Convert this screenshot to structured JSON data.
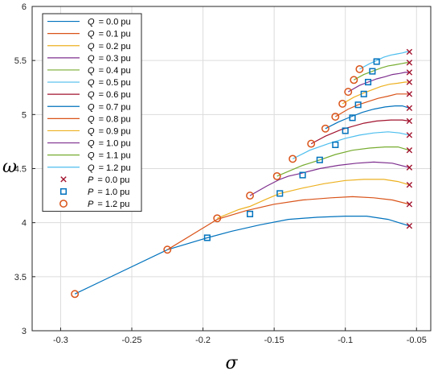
{
  "chart_data": {
    "type": "line",
    "xlabel": "σ",
    "ylabel": "ω",
    "xlim": [
      -0.32,
      -0.04
    ],
    "ylim": [
      3,
      6
    ],
    "xticks": [
      -0.3,
      -0.25,
      -0.2,
      -0.15,
      -0.1,
      -0.05
    ],
    "xtick_labels": [
      "-0.3",
      "-0.25",
      "-0.2",
      "-0.15",
      "-0.1",
      "-0.05"
    ],
    "yticks": [
      3,
      3.5,
      4,
      4.5,
      5,
      5.5,
      6
    ],
    "ytick_labels": [
      "3",
      "3.5",
      "4",
      "4.5",
      "5",
      "5.5",
      "6"
    ],
    "grid": true,
    "legend_position": "top-left",
    "series": [
      {
        "name": "Q = 0.0 pu",
        "symbol": "Q",
        "value_text": "= 0.0 pu",
        "color": "#0072BD",
        "x": [
          -0.29,
          -0.225,
          -0.197,
          -0.18,
          -0.16,
          -0.14,
          -0.12,
          -0.1,
          -0.085,
          -0.07,
          -0.055
        ],
        "y": [
          3.34,
          3.75,
          3.86,
          3.92,
          3.98,
          4.03,
          4.05,
          4.06,
          4.06,
          4.03,
          3.97
        ]
      },
      {
        "name": "Q = 0.1 pu",
        "symbol": "Q",
        "value_text": "= 0.1 pu",
        "color": "#D95319",
        "x": [
          -0.225,
          -0.2,
          -0.19,
          -0.17,
          -0.15,
          -0.13,
          -0.11,
          -0.095,
          -0.08,
          -0.067,
          -0.055
        ],
        "y": [
          3.75,
          3.95,
          4.03,
          4.11,
          4.17,
          4.21,
          4.23,
          4.24,
          4.23,
          4.21,
          4.17
        ]
      },
      {
        "name": "Q = 0.2 pu",
        "symbol": "Q",
        "value_text": "= 0.2 pu",
        "color": "#EDB120",
        "x": [
          -0.19,
          -0.175,
          -0.167,
          -0.155,
          -0.146,
          -0.13,
          -0.115,
          -0.1,
          -0.087,
          -0.073,
          -0.063,
          -0.055
        ],
        "y": [
          4.04,
          4.12,
          4.15,
          4.22,
          4.27,
          4.32,
          4.36,
          4.39,
          4.4,
          4.4,
          4.38,
          4.35
        ]
      },
      {
        "name": "Q = 0.3 pu",
        "symbol": "Q",
        "value_text": "= 0.3 pu",
        "color": "#7E2F8E",
        "x": [
          -0.167,
          -0.155,
          -0.146,
          -0.14,
          -0.13,
          -0.118,
          -0.105,
          -0.092,
          -0.08,
          -0.067,
          -0.055
        ],
        "y": [
          4.25,
          4.34,
          4.4,
          4.43,
          4.46,
          4.5,
          4.53,
          4.55,
          4.56,
          4.55,
          4.51
        ]
      },
      {
        "name": "Q = 0.4 pu",
        "symbol": "Q",
        "value_text": "= 0.4 pu",
        "color": "#77AC30",
        "x": [
          -0.148,
          -0.13,
          -0.118,
          -0.107,
          -0.095,
          -0.083,
          -0.072,
          -0.063,
          -0.055
        ],
        "y": [
          4.43,
          4.53,
          4.58,
          4.63,
          4.67,
          4.69,
          4.7,
          4.7,
          4.67
        ]
      },
      {
        "name": "Q = 0.5 pu",
        "symbol": "Q",
        "value_text": "= 0.5 pu",
        "color": "#4DBEEE",
        "x": [
          -0.137,
          -0.125,
          -0.112,
          -0.1,
          -0.09,
          -0.08,
          -0.07,
          -0.062,
          -0.055
        ],
        "y": [
          4.59,
          4.67,
          4.73,
          4.78,
          4.81,
          4.83,
          4.84,
          4.83,
          4.81
        ]
      },
      {
        "name": "Q = 0.6 pu",
        "symbol": "Q",
        "value_text": "= 0.6 pu",
        "color": "#A2142F",
        "x": [
          -0.124,
          -0.114,
          -0.103,
          -0.095,
          -0.087,
          -0.078,
          -0.068,
          -0.06,
          -0.055
        ],
        "y": [
          4.73,
          4.8,
          4.86,
          4.89,
          4.92,
          4.94,
          4.95,
          4.95,
          4.94
        ]
      },
      {
        "name": "Q = 0.7 pu",
        "symbol": "Q",
        "value_text": "= 0.7 pu",
        "color": "#0072BD",
        "x": [
          -0.114,
          -0.105,
          -0.096,
          -0.088,
          -0.08,
          -0.072,
          -0.065,
          -0.06,
          -0.055
        ],
        "y": [
          4.87,
          4.93,
          4.98,
          5.02,
          5.05,
          5.07,
          5.08,
          5.08,
          5.06
        ]
      },
      {
        "name": "Q = 0.8 pu",
        "symbol": "Q",
        "value_text": "= 0.8 pu",
        "color": "#D95319",
        "x": [
          -0.107,
          -0.098,
          -0.091,
          -0.084,
          -0.077,
          -0.07,
          -0.064,
          -0.059,
          -0.055
        ],
        "y": [
          4.98,
          5.05,
          5.09,
          5.12,
          5.15,
          5.17,
          5.19,
          5.19,
          5.19
        ]
      },
      {
        "name": "Q = 0.9 pu",
        "symbol": "Q",
        "value_text": "= 0.9 pu",
        "color": "#EDB120",
        "x": [
          -0.102,
          -0.094,
          -0.087,
          -0.081,
          -0.075,
          -0.069,
          -0.063,
          -0.058,
          -0.055
        ],
        "y": [
          5.1,
          5.16,
          5.2,
          5.23,
          5.26,
          5.28,
          5.29,
          5.3,
          5.3
        ]
      },
      {
        "name": "Q = 1.0 pu",
        "symbol": "Q",
        "value_text": "= 1.0 pu",
        "color": "#7E2F8E",
        "x": [
          -0.098,
          -0.09,
          -0.084,
          -0.078,
          -0.072,
          -0.067,
          -0.062,
          -0.058,
          -0.055
        ],
        "y": [
          5.21,
          5.27,
          5.3,
          5.33,
          5.35,
          5.37,
          5.38,
          5.39,
          5.39
        ]
      },
      {
        "name": "Q = 1.1 pu",
        "symbol": "Q",
        "value_text": "= 1.1 pu",
        "color": "#77AC30",
        "x": [
          -0.094,
          -0.087,
          -0.081,
          -0.075,
          -0.07,
          -0.065,
          -0.061,
          -0.057,
          -0.055
        ],
        "y": [
          5.32,
          5.37,
          5.4,
          5.43,
          5.45,
          5.46,
          5.47,
          5.48,
          5.48
        ]
      },
      {
        "name": "Q = 1.2 pu",
        "symbol": "Q",
        "value_text": "= 1.2 pu",
        "color": "#4DBEEE",
        "x": [
          -0.09,
          -0.083,
          -0.078,
          -0.073,
          -0.068,
          -0.064,
          -0.06,
          -0.057,
          -0.055
        ],
        "y": [
          5.42,
          5.47,
          5.5,
          5.53,
          5.55,
          5.56,
          5.57,
          5.58,
          5.58
        ]
      }
    ],
    "markers": [
      {
        "name": "P = 0.0 pu",
        "symbol": "P",
        "value_text": "= 0.0 pu",
        "marker": "x",
        "color": "#A2142F",
        "x": [
          -0.055,
          -0.055,
          -0.055,
          -0.055,
          -0.055,
          -0.055,
          -0.055,
          -0.055,
          -0.055,
          -0.055,
          -0.055,
          -0.055,
          -0.055
        ],
        "y": [
          3.97,
          4.17,
          4.35,
          4.51,
          4.67,
          4.81,
          4.94,
          5.06,
          5.19,
          5.3,
          5.39,
          5.48,
          5.58
        ]
      },
      {
        "name": "P = 1.0 pu",
        "symbol": "P",
        "value_text": "= 1.0 pu",
        "marker": "square",
        "color": "#0072BD",
        "x": [
          -0.197,
          -0.167,
          -0.146,
          -0.13,
          -0.118,
          -0.107,
          -0.1,
          -0.095,
          -0.091,
          -0.087,
          -0.084,
          -0.081,
          -0.078
        ],
        "y": [
          3.86,
          4.08,
          4.27,
          4.44,
          4.58,
          4.72,
          4.85,
          4.97,
          5.09,
          5.19,
          5.3,
          5.4,
          5.49
        ]
      },
      {
        "name": "P = 1.2 pu",
        "symbol": "P",
        "value_text": "= 1.2 pu",
        "marker": "circle",
        "color": "#D95319",
        "x": [
          -0.29,
          -0.225,
          -0.19,
          -0.167,
          -0.148,
          -0.137,
          -0.124,
          -0.114,
          -0.107,
          -0.102,
          -0.098,
          -0.094,
          -0.09
        ],
        "y": [
          3.34,
          3.75,
          4.04,
          4.25,
          4.43,
          4.59,
          4.73,
          4.87,
          4.98,
          5.1,
          5.21,
          5.32,
          5.42
        ]
      }
    ]
  }
}
